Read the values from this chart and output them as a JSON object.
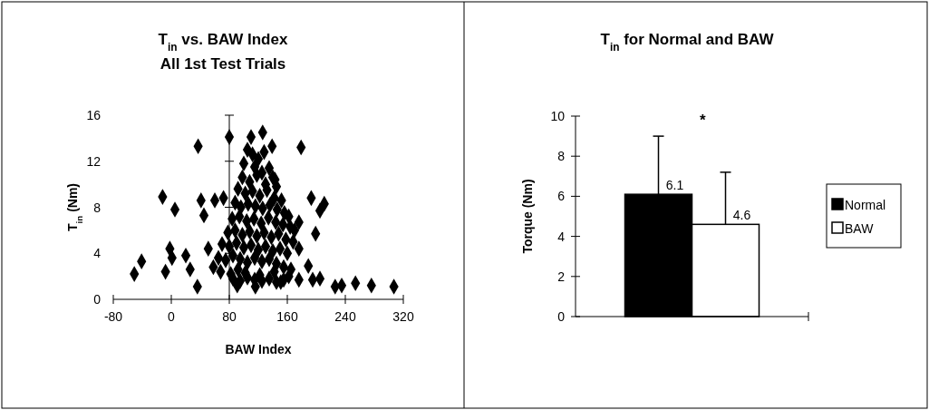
{
  "chart_data": [
    {
      "type": "scatter",
      "title": "T$_{in}$ vs.  BAW Index",
      "subtitle": "All 1st Test Trials",
      "xlabel": "BAW Index",
      "ylabel": "T$_{in}$ (Nm)",
      "color": "#000000",
      "marker": "diamond",
      "grid": false,
      "legend": false,
      "x": [
        -51,
        -41,
        -8,
        -12,
        5,
        37,
        80,
        179,
        126,
        110,
        139,
        -2,
        1,
        20,
        26,
        36,
        41,
        45,
        60,
        72,
        51,
        91,
        116,
        151,
        176,
        189,
        199,
        193,
        211,
        205,
        195,
        205,
        226,
        235,
        254,
        276,
        307,
        143,
        176,
        176,
        105,
        112,
        120,
        128,
        100,
        115,
        125,
        135,
        98,
        108,
        118,
        130,
        140,
        145,
        92,
        102,
        112,
        122,
        132,
        142,
        152,
        88,
        96,
        106,
        116,
        126,
        136,
        146,
        156,
        162,
        84,
        94,
        104,
        114,
        124,
        134,
        144,
        154,
        164,
        170,
        78,
        88,
        98,
        108,
        118,
        128,
        138,
        148,
        158,
        168,
        70,
        80,
        90,
        100,
        110,
        120,
        130,
        140,
        150,
        160,
        65,
        75,
        85,
        95,
        105,
        115,
        125,
        135,
        145,
        155,
        165,
        58,
        68,
        82,
        92,
        102,
        122,
        142,
        162,
        85,
        95,
        105,
        115,
        125,
        135,
        145,
        155
      ],
      "values": [
        2.2,
        3.3,
        2.4,
        8.9,
        7.8,
        13.3,
        14.1,
        13.2,
        14.5,
        14.1,
        13.3,
        4.4,
        3.6,
        3.8,
        2.6,
        1.1,
        8.6,
        7.3,
        8.6,
        8.8,
        4.4,
        1.2,
        1.1,
        1.5,
        1.7,
        2.9,
        5.7,
        8.8,
        8.3,
        7.7,
        1.7,
        1.8,
        1.1,
        1.2,
        1.4,
        1.2,
        1.1,
        10.4,
        6.7,
        4.4,
        13.0,
        12.6,
        12.2,
        12.8,
        11.8,
        11.5,
        11.0,
        11.4,
        10.6,
        10.2,
        10.8,
        10.0,
        10.6,
        9.8,
        9.6,
        9.2,
        9.4,
        9.0,
        9.5,
        8.8,
        8.6,
        8.4,
        8.0,
        8.3,
        8.1,
        7.9,
        8.2,
        7.8,
        7.5,
        7.2,
        7.0,
        7.2,
        6.8,
        7.0,
        6.6,
        7.1,
        6.7,
        6.5,
        6.3,
        6.0,
        5.8,
        6.0,
        5.6,
        5.9,
        5.5,
        5.8,
        5.4,
        5.7,
        5.2,
        5.0,
        4.8,
        4.6,
        4.9,
        4.5,
        4.7,
        4.3,
        4.6,
        4.2,
        4.4,
        4.0,
        3.6,
        3.4,
        3.8,
        3.5,
        3.2,
        3.6,
        3.3,
        3.5,
        3.1,
        2.8,
        2.6,
        2.8,
        2.4,
        2.2,
        2.6,
        2.3,
        2.1,
        2.4,
        2.0,
        1.8,
        1.6,
        1.9,
        1.7,
        1.6,
        1.8,
        1.5,
        1.7
      ],
      "ref_lines": [
        {
          "axis": "x",
          "value": 80
        }
      ],
      "xlim": [
        -80,
        320
      ],
      "xticks": [
        -80,
        0,
        80,
        160,
        240,
        320
      ],
      "ylim": [
        0,
        16
      ],
      "yticks": [
        0,
        4,
        8,
        12,
        16
      ]
    },
    {
      "type": "bar",
      "title": "T$_{in}$ for Normal and BAW",
      "ylabel": "Torque (Nm)",
      "categories": [
        null
      ],
      "series": [
        {
          "name": "Normal",
          "color": "#000000",
          "values": [
            6.1
          ],
          "value_labels": [
            "6.1"
          ],
          "errors": [
            [
              6.1,
              9.0
            ]
          ]
        },
        {
          "name": "BAW",
          "color": "#ffffff",
          "values": [
            4.6
          ],
          "value_labels": [
            "4.6"
          ],
          "errors": [
            [
              4.6,
              7.2
            ]
          ]
        }
      ],
      "annotations": [
        "*"
      ],
      "legend": "right",
      "grid": false,
      "ylim": [
        0,
        10
      ],
      "yticks": [
        0,
        2,
        4,
        6,
        8,
        10
      ]
    }
  ]
}
